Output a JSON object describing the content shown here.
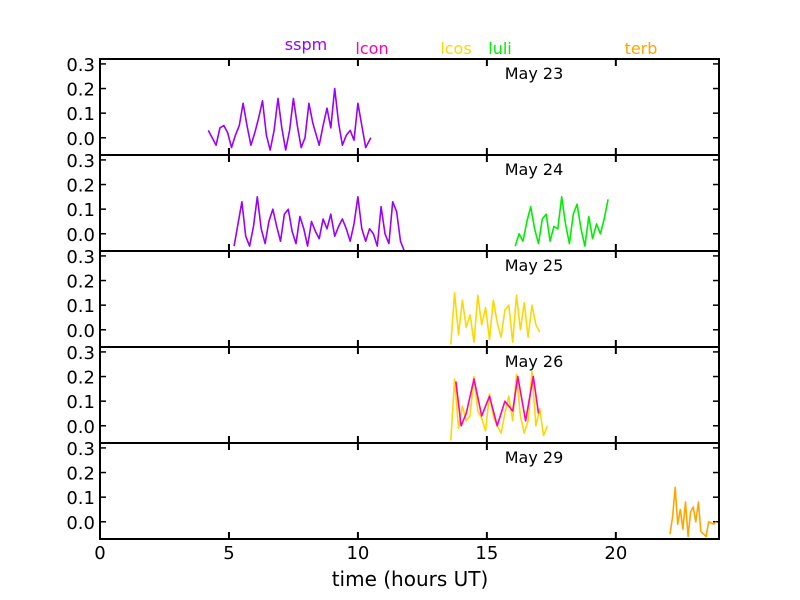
{
  "chart_data": {
    "type": "line",
    "xlabel": "time (hours UT)",
    "xlim": [
      0,
      24
    ],
    "ylim": [
      -0.07,
      0.32
    ],
    "x_ticks": [
      0,
      5,
      10,
      15,
      20
    ],
    "y_ticks": [
      0.0,
      0.1,
      0.2,
      0.3
    ],
    "legend": [
      {
        "name": "sspm",
        "color": "#9900ff"
      },
      {
        "name": "lcon",
        "color": "#ff00aa"
      },
      {
        "name": "lcos",
        "color": "#ffd700"
      },
      {
        "name": "luli",
        "color": "#00ee00"
      },
      {
        "name": "terb",
        "color": "#ffa500"
      }
    ],
    "panels": [
      {
        "label": "May 23",
        "series": [
          {
            "name": "sspm",
            "color": "#9900ff",
            "x": [
              4.2,
              4.35,
              4.5,
              4.65,
              4.8,
              4.95,
              5.1,
              5.25,
              5.4,
              5.55,
              5.7,
              5.85,
              6.0,
              6.15,
              6.3,
              6.45,
              6.6,
              6.75,
              6.9,
              7.05,
              7.2,
              7.35,
              7.5,
              7.65,
              7.8,
              7.95,
              8.1,
              8.25,
              8.5,
              8.65,
              8.8,
              8.95,
              9.1,
              9.25,
              9.4,
              9.55,
              9.7,
              9.85,
              10.0,
              10.15,
              10.3,
              10.5
            ],
            "y": [
              0.03,
              0.0,
              -0.03,
              0.04,
              0.05,
              0.02,
              -0.04,
              0.01,
              0.05,
              0.14,
              0.05,
              -0.03,
              0.02,
              0.08,
              0.15,
              0.01,
              -0.05,
              0.03,
              0.16,
              0.04,
              -0.05,
              0.03,
              0.16,
              0.05,
              -0.04,
              0.0,
              0.14,
              0.06,
              -0.03,
              0.05,
              0.12,
              0.04,
              0.2,
              0.06,
              -0.03,
              0.01,
              0.03,
              -0.01,
              0.14,
              0.05,
              -0.04,
              0.0
            ]
          }
        ]
      },
      {
        "label": "May 24",
        "series": [
          {
            "name": "sspm",
            "color": "#9900ff",
            "x": [
              5.2,
              5.35,
              5.5,
              5.65,
              5.8,
              5.95,
              6.1,
              6.25,
              6.4,
              6.55,
              6.7,
              6.85,
              7.0,
              7.15,
              7.3,
              7.45,
              7.6,
              7.75,
              7.9,
              8.05,
              8.2,
              8.35,
              8.5,
              8.65,
              8.8,
              8.95,
              9.1,
              9.25,
              9.4,
              9.55,
              9.7,
              9.85,
              10.0,
              10.15,
              10.3,
              10.45,
              10.6,
              10.75,
              10.9,
              11.05,
              11.2,
              11.35,
              11.5,
              11.65,
              11.8
            ],
            "y": [
              -0.05,
              0.04,
              0.13,
              -0.01,
              -0.05,
              0.03,
              0.15,
              0.02,
              -0.04,
              0.05,
              0.1,
              0.03,
              -0.03,
              0.08,
              0.1,
              0.01,
              -0.04,
              0.07,
              0.02,
              -0.05,
              0.05,
              0.01,
              -0.02,
              0.06,
              0.02,
              0.08,
              -0.01,
              0.03,
              0.06,
              0.02,
              -0.03,
              0.04,
              0.15,
              0.02,
              -0.03,
              0.02,
              0.0,
              -0.05,
              0.11,
              0.0,
              -0.04,
              0.13,
              0.09,
              -0.03,
              -0.07
            ]
          },
          {
            "name": "luli",
            "color": "#00ee00",
            "x": [
              16.1,
              16.25,
              16.4,
              16.55,
              16.7,
              16.85,
              17.0,
              17.15,
              17.3,
              17.45,
              17.6,
              17.75,
              17.9,
              18.05,
              18.2,
              18.35,
              18.5,
              18.65,
              18.8,
              18.95,
              19.1,
              19.25,
              19.4,
              19.55,
              19.7
            ],
            "y": [
              -0.05,
              0.0,
              -0.03,
              0.05,
              0.11,
              0.02,
              -0.04,
              0.06,
              0.08,
              -0.03,
              0.03,
              0.02,
              0.15,
              0.04,
              -0.04,
              0.08,
              0.12,
              0.02,
              -0.05,
              0.07,
              -0.02,
              0.04,
              0.0,
              0.06,
              0.14
            ]
          }
        ]
      },
      {
        "label": "May 25",
        "series": [
          {
            "name": "lcos",
            "color": "#ffd700",
            "x": [
              13.6,
              13.75,
              13.9,
              14.05,
              14.2,
              14.35,
              14.5,
              14.65,
              14.8,
              14.95,
              15.1,
              15.25,
              15.4,
              15.55,
              15.7,
              15.85,
              16.0,
              16.15,
              16.3,
              16.45,
              16.6,
              16.75,
              16.9,
              17.05
            ],
            "y": [
              -0.06,
              0.15,
              -0.02,
              0.12,
              0.01,
              0.06,
              -0.05,
              0.14,
              0.02,
              0.09,
              -0.04,
              0.12,
              0.03,
              -0.03,
              0.08,
              0.1,
              -0.05,
              0.14,
              0.0,
              0.11,
              -0.03,
              0.1,
              0.02,
              -0.01
            ]
          }
        ]
      },
      {
        "label": "May 26",
        "series": [
          {
            "name": "lcos",
            "color": "#ffd700",
            "x": [
              13.6,
              13.75,
              13.9,
              14.05,
              14.2,
              14.35,
              14.5,
              14.65,
              14.8,
              14.95,
              15.1,
              15.25,
              15.4,
              15.55,
              15.7,
              15.85,
              16.0,
              16.15,
              16.3,
              16.45,
              16.6,
              16.75,
              16.9,
              17.05,
              17.2,
              17.35
            ],
            "y": [
              -0.06,
              0.19,
              -0.01,
              0.08,
              0.02,
              0.04,
              0.2,
              0.06,
              0.03,
              -0.02,
              0.13,
              0.04,
              0.0,
              -0.03,
              0.05,
              0.12,
              0.02,
              0.21,
              0.04,
              -0.03,
              0.02,
              0.22,
              0.0,
              0.07,
              -0.04,
              0.0
            ]
          },
          {
            "name": "lcon",
            "color": "#ff00aa",
            "x": [
              13.8,
              14.0,
              14.2,
              14.5,
              14.8,
              15.1,
              15.4,
              15.7,
              16.0,
              16.2,
              16.5,
              16.8,
              17.0
            ],
            "y": [
              0.18,
              0.0,
              0.05,
              0.19,
              0.04,
              0.12,
              0.0,
              0.1,
              0.06,
              0.2,
              0.02,
              0.2,
              0.05
            ]
          }
        ]
      },
      {
        "label": "May 29",
        "series": [
          {
            "name": "terb",
            "color": "#ffa500",
            "x": [
              22.1,
              22.2,
              22.3,
              22.4,
              22.5,
              22.6,
              22.7,
              22.8,
              22.9,
              23.0,
              23.1,
              23.2,
              23.3,
              23.5,
              23.6,
              23.8,
              23.9
            ],
            "y": [
              -0.05,
              0.02,
              0.14,
              -0.01,
              0.05,
              -0.03,
              0.08,
              -0.06,
              0.04,
              0.06,
              0.0,
              0.08,
              -0.04,
              -0.06,
              0.0,
              -0.01,
              0.0
            ]
          }
        ]
      }
    ]
  }
}
